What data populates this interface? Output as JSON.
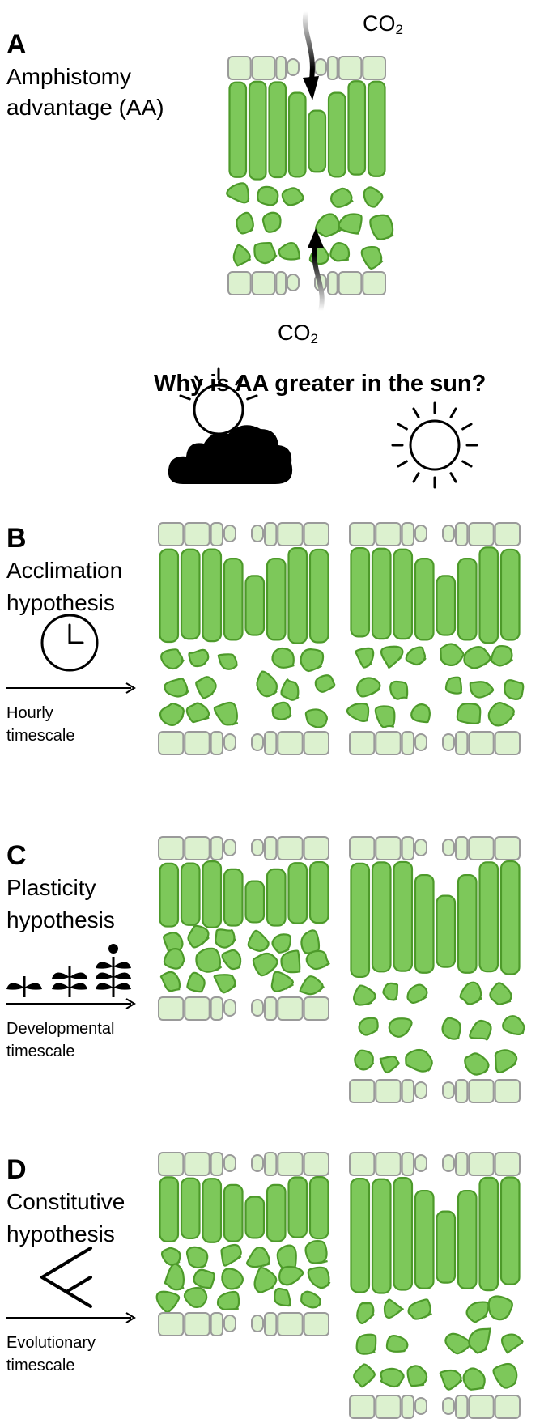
{
  "panels": {
    "A": {
      "letter": "A",
      "title_line1": "Amphistomy",
      "title_line2": "advantage (AA)"
    },
    "B": {
      "letter": "B",
      "title_line1": "Acclimation",
      "title_line2": "hypothesis",
      "scale_line1": "Hourly",
      "scale_line2": "timescale",
      "icon": "clock-icon"
    },
    "C": {
      "letter": "C",
      "title_line1": "Plasticity",
      "title_line2": "hypothesis",
      "scale_line1": "Developmental",
      "scale_line2": "timescale",
      "icon": "seedlings-icon"
    },
    "D": {
      "letter": "D",
      "title_line1": "Constitutive",
      "title_line2": "hypothesis",
      "scale_line1": "Evolutionary",
      "scale_line2": "timescale",
      "icon": "phylogeny-branch-icon"
    }
  },
  "co2": {
    "main": "CO",
    "sub": "2"
  },
  "question": "Why is AA greater in the sun?",
  "conditions": {
    "shade_icon": "sun-behind-cloud-icon",
    "sun_icon": "sun-icon"
  },
  "colors": {
    "palisade_fill": "#7dc85a",
    "palisade_stroke": "#4d9a2a",
    "epidermis_fill": "#dcf1cf",
    "epidermis_stroke": "#9a9a9a",
    "ink": "#000000"
  }
}
